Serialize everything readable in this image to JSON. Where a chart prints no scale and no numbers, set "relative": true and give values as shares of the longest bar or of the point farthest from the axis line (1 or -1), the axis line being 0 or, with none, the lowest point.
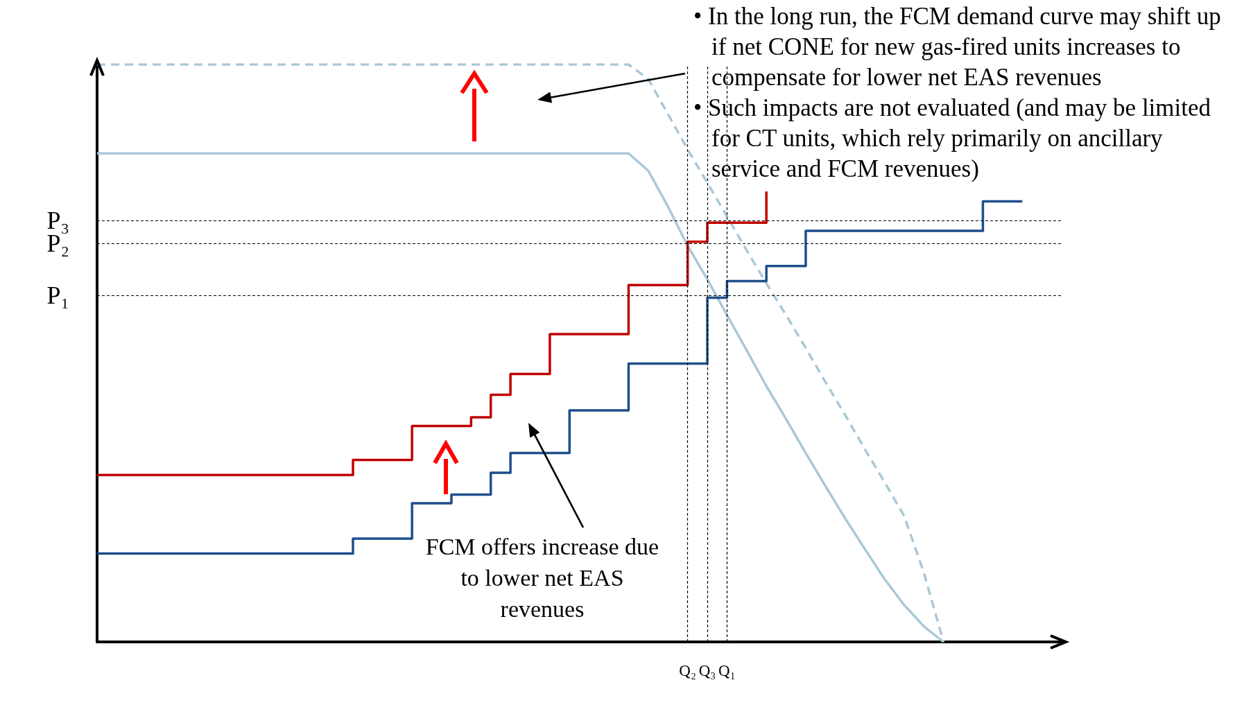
{
  "chart_data": {
    "type": "line",
    "relative": true,
    "grid": false,
    "categories": [
      null,
      null,
      null,
      null,
      null,
      null,
      null,
      null,
      null,
      null,
      null,
      null,
      null,
      null,
      null,
      null,
      null,
      null,
      null,
      null,
      null,
      null,
      null,
      null,
      null,
      null,
      null,
      null,
      null,
      null,
      "Q₂",
      "Q₃",
      "Q₁",
      null,
      null,
      null,
      null,
      null,
      null,
      null,
      null,
      null,
      null,
      null,
      null,
      null,
      null,
      null,
      null,
      null
    ],
    "series": [
      {
        "color": "#a9c8d8",
        "line_style": "dashed",
        "values": [
          1,
          1,
          1,
          1,
          1,
          1,
          1,
          1,
          1,
          1,
          1,
          1,
          1,
          1,
          1,
          1,
          1,
          1,
          1,
          1,
          1,
          1,
          1,
          1,
          1,
          1,
          1,
          1,
          0.975,
          0.914,
          0.853,
          0.795,
          0.737,
          0.678,
          0.621,
          0.566,
          0.509,
          0.45,
          0.393,
          0.334,
          0.277,
          0.218,
          0.12,
          0,
          null,
          null,
          null,
          null,
          null,
          null
        ]
      },
      {
        "color": "#a9c8d8",
        "line_style": "solid",
        "values": [
          0.846,
          0.846,
          0.846,
          0.846,
          0.846,
          0.846,
          0.846,
          0.846,
          0.846,
          0.846,
          0.846,
          0.846,
          0.846,
          0.846,
          0.846,
          0.846,
          0.846,
          0.846,
          0.846,
          0.846,
          0.846,
          0.846,
          0.846,
          0.846,
          0.846,
          0.846,
          0.846,
          0.846,
          0.816,
          0.754,
          0.686,
          0.628,
          0.566,
          0.505,
          0.443,
          0.386,
          0.327,
          0.27,
          0.214,
          0.161,
          0.109,
          0.064,
          0.027,
          0,
          null,
          null,
          null,
          null,
          null,
          null
        ]
      },
      {
        "type": "step",
        "color": "#1f4e8c",
        "line_style": "solid",
        "values": [
          0.153,
          0.153,
          0.153,
          0.153,
          0.153,
          0.153,
          0.153,
          0.153,
          0.153,
          0.153,
          0.153,
          0.153,
          0.153,
          0.179,
          0.179,
          0.179,
          0.24,
          0.24,
          0.255,
          0.255,
          0.293,
          0.327,
          0.327,
          0.327,
          0.401,
          0.401,
          0.401,
          0.482,
          0.482,
          0.482,
          0.482,
          0.596,
          0.625,
          0.625,
          0.651,
          0.651,
          0.712,
          0.712,
          0.712,
          0.712,
          0.712,
          0.712,
          0.712,
          0.712,
          0.712,
          0.763,
          0.763,
          0.763,
          null,
          null
        ]
      },
      {
        "type": "step",
        "color": "#c00000",
        "line_style": "solid",
        "values": [
          0.289,
          0.289,
          0.289,
          0.289,
          0.289,
          0.289,
          0.289,
          0.289,
          0.289,
          0.289,
          0.289,
          0.289,
          0.289,
          0.315,
          0.315,
          0.315,
          0.374,
          0.374,
          0.374,
          0.389,
          0.428,
          0.464,
          0.464,
          0.533,
          0.533,
          0.533,
          0.533,
          0.618,
          0.618,
          0.618,
          0.693,
          0.726,
          0.726,
          0.726,
          0.78,
          null,
          null,
          null,
          null,
          null,
          null,
          null,
          null,
          null,
          null,
          null,
          null,
          null,
          null,
          null
        ]
      }
    ],
    "ref_lines": [
      {
        "axis": "y",
        "value": 0.596,
        "label": "P₁",
        "color": "#000000",
        "line_style": "dashed"
      },
      {
        "axis": "y",
        "value": 0.693,
        "label": "P₂",
        "color": "#000000",
        "line_style": "dashed"
      },
      {
        "axis": "y",
        "value": 0.726,
        "label": "P₃",
        "color": "#000000",
        "line_style": "dashed"
      },
      {
        "axis": "x",
        "value": "Q₂",
        "color": "#000000",
        "line_style": "dashed"
      },
      {
        "axis": "x",
        "value": "Q₃",
        "color": "#000000",
        "line_style": "dashed"
      },
      {
        "axis": "x",
        "value": "Q₁",
        "color": "#000000",
        "line_style": "dashed"
      }
    ],
    "annotations": [
      "• In the long run, the FCM demand curve may shift up if net CONE for new gas-fired units increases to compensate for lower net EAS revenues",
      "• Such impacts are not evaluated (and may be limited for CT units, which rely primarily on ancillary service and FCM revenues)",
      "FCM offers increase due to lower net EAS revenues"
    ]
  }
}
